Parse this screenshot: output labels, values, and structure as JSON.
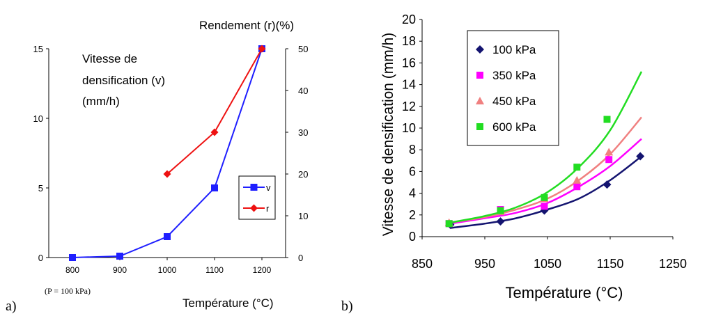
{
  "panel_labels": {
    "a": "a)",
    "b": "b)"
  },
  "chart_data": [
    {
      "type": "line",
      "x": [
        800,
        900,
        1000,
        1100,
        1200
      ],
      "categories": [
        "800",
        "900",
        "1000",
        "1100",
        "1200"
      ],
      "xlabel": "Température (°C)",
      "note": "(P = 100 kPa)",
      "ylabel_left": "Vitesse de densification (v) (mm/h)",
      "ylabel_left_lines": [
        "Vitesse de",
        "densification (v)",
        "(mm/h)"
      ],
      "ylabel_right": "Rendement (r)(%)",
      "ylim_left": [
        0,
        15
      ],
      "yticks_left": [
        "0",
        "5",
        "10",
        "15"
      ],
      "ylim_right": [
        0,
        50
      ],
      "yticks_right": [
        "0",
        "10",
        "20",
        "30",
        "40",
        "50"
      ],
      "legend_position": "right",
      "series": [
        {
          "name": "v",
          "axis": "left",
          "color": "#1f1fff",
          "marker": "square",
          "x": [
            800,
            900,
            1000,
            1100,
            1200
          ],
          "values": [
            0,
            0.1,
            1.5,
            5,
            15
          ]
        },
        {
          "name": "r",
          "axis": "right",
          "color": "#ee1111",
          "marker": "diamond",
          "x": [
            1000,
            1100,
            1200
          ],
          "values": [
            20,
            30,
            50
          ]
        }
      ]
    },
    {
      "type": "scatter",
      "xlabel": "Température (°C)",
      "ylabel": "Vitesse de densification (mm/h)",
      "xlim": [
        850,
        1250
      ],
      "xticks": [
        "850",
        "950",
        "1050",
        "1150",
        "1250"
      ],
      "ylim": [
        0,
        20
      ],
      "yticks": [
        "0",
        "2",
        "4",
        "6",
        "8",
        "10",
        "12",
        "14",
        "16",
        "18",
        "20"
      ],
      "grid": false,
      "legend_position": "top-left",
      "series": [
        {
          "name": "100 kPa",
          "color": "#141470",
          "marker": "diamond",
          "points": [
            [
              895,
              1.1
            ],
            [
              975,
              1.4
            ],
            [
              1045,
              2.4
            ],
            [
              1145,
              4.8
            ],
            [
              1198,
              7.4
            ]
          ],
          "fit": [
            [
              895,
              0.8
            ],
            [
              950,
              1.2
            ],
            [
              1000,
              1.7
            ],
            [
              1050,
              2.5
            ],
            [
              1100,
              3.5
            ],
            [
              1150,
              5.2
            ],
            [
              1200,
              7.4
            ]
          ]
        },
        {
          "name": "350 kPa",
          "color": "#ff00ff",
          "marker": "square",
          "points": [
            [
              893,
              1.2
            ],
            [
              975,
              2.5
            ],
            [
              1045,
              2.8
            ],
            [
              1097,
              4.6
            ],
            [
              1148,
              7.1
            ]
          ],
          "fit": [
            [
              895,
              1.2
            ],
            [
              950,
              1.7
            ],
            [
              1000,
              2.2
            ],
            [
              1050,
              3.1
            ],
            [
              1100,
              4.6
            ],
            [
              1150,
              6.5
            ],
            [
              1200,
              9.0
            ]
          ]
        },
        {
          "name": "450 kPa",
          "color": "#f08080",
          "marker": "triangle",
          "points": [
            [
              893,
              1.3
            ],
            [
              975,
              2.3
            ],
            [
              1045,
              3.5
            ],
            [
              1097,
              5.2
            ],
            [
              1148,
              7.8
            ]
          ],
          "fit": [
            [
              895,
              1.3
            ],
            [
              950,
              1.8
            ],
            [
              1000,
              2.5
            ],
            [
              1050,
              3.5
            ],
            [
              1100,
              5.2
            ],
            [
              1150,
              7.6
            ],
            [
              1200,
              11.0
            ]
          ]
        },
        {
          "name": "600 kPa",
          "color": "#22dd22",
          "marker": "square",
          "points": [
            [
              893,
              1.2
            ],
            [
              975,
              2.4
            ],
            [
              1045,
              3.6
            ],
            [
              1097,
              6.4
            ],
            [
              1145,
              10.8
            ]
          ],
          "fit": [
            [
              895,
              1.3
            ],
            [
              950,
              1.9
            ],
            [
              1000,
              2.7
            ],
            [
              1050,
              4.1
            ],
            [
              1100,
              6.4
            ],
            [
              1150,
              9.8
            ],
            [
              1200,
              15.2
            ]
          ]
        }
      ]
    }
  ]
}
